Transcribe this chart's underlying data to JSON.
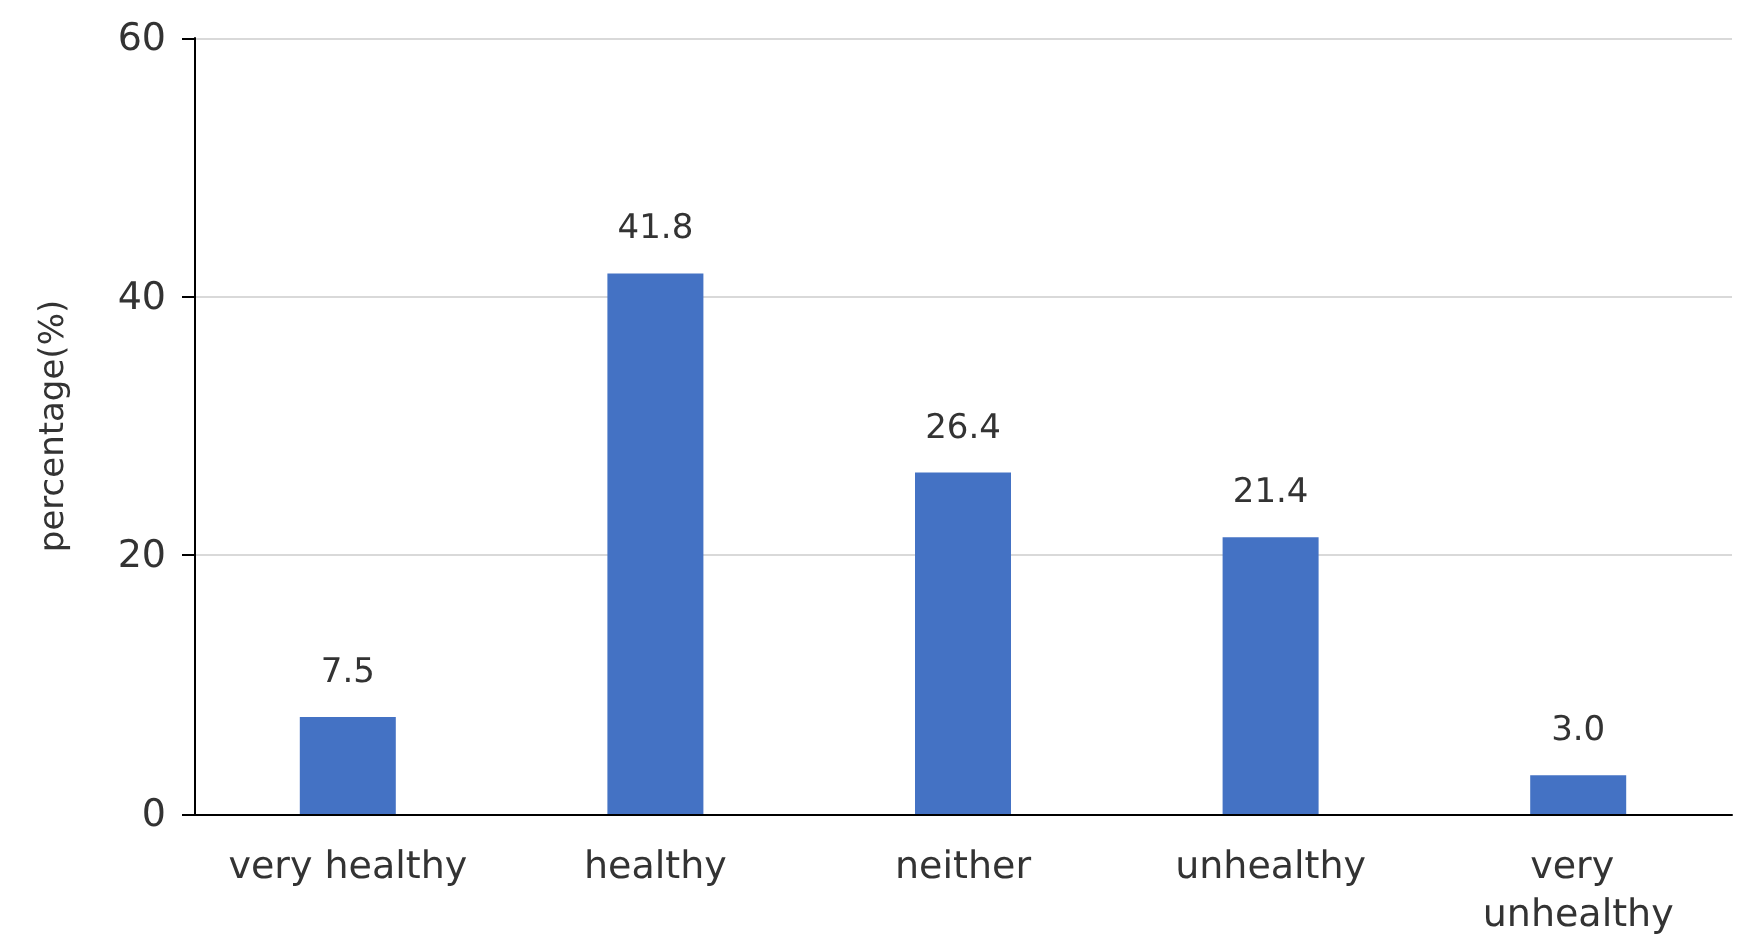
{
  "chart_data": {
    "type": "bar",
    "ylabel": "percentage(%)",
    "categories": [
      "very healthy",
      "healthy",
      "neither",
      "unhealthy",
      "very unhealthy"
    ],
    "values": [
      7.5,
      41.8,
      26.4,
      21.4,
      3.0
    ],
    "value_labels": [
      "7.5",
      "41.8",
      "26.4",
      "21.4",
      "3.0"
    ],
    "color": "#4472c4",
    "ylim": [
      0,
      60
    ],
    "yticks": [
      0,
      20,
      40,
      60
    ],
    "grid": "y"
  }
}
